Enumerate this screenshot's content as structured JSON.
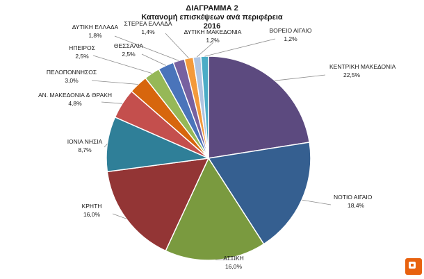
{
  "chart_data": {
    "type": "pie",
    "title_lines": [
      "ΔΙΑΓΡΑΜΜΑ 2",
      "Κατανομή επισκέψεων ανά περιφέρεια",
      "2016"
    ],
    "slices": [
      {
        "label": "ΚΕΝΤΡΙΚΗ ΜΑΚΕΔΟΝΙΑ",
        "value": 22.5,
        "value_label": "22,5%",
        "color": "#5c4a7f"
      },
      {
        "label": "ΝΟΤΙΟ ΑΙΓΑΙΟ",
        "value": 18.4,
        "value_label": "18,4%",
        "color": "#355f90"
      },
      {
        "label": "ΑΤΤΙΚΗ",
        "value": 16.0,
        "value_label": "16,0%",
        "color": "#7a9a3f"
      },
      {
        "label": "ΚΡΗΤΗ",
        "value": 16.0,
        "value_label": "16,0%",
        "color": "#933535"
      },
      {
        "label": "ΙΟΝΙΑ ΝΗΣΙΑ",
        "value": 8.7,
        "value_label": "8,7%",
        "color": "#2f7f98"
      },
      {
        "label": "ΑΝ. ΜΑΚΕΔΟΝΙΑ & ΘΡΑΚΗ",
        "value": 4.8,
        "value_label": "4,8%",
        "color": "#c44f4d"
      },
      {
        "label": "ΠΕΛΟΠΟΝΝΗΣΟΣ",
        "value": 3.0,
        "value_label": "3,0%",
        "color": "#d7660d"
      },
      {
        "label": "ΗΠΕΙΡΟΣ",
        "value": 2.5,
        "value_label": "2,5%",
        "color": "#96b857"
      },
      {
        "label": "ΘΕΣΣΑΛΙΑ",
        "value": 2.5,
        "value_label": "2,5%",
        "color": "#4a74ba"
      },
      {
        "label": "ΔΥΤΙΚΗ ΕΛΛΑΔΑ",
        "value": 1.8,
        "value_label": "1,8%",
        "color": "#7761a0"
      },
      {
        "label": "ΣΤΕΡΕΑ ΕΛΛΑΔΑ",
        "value": 1.4,
        "value_label": "1,4%",
        "color": "#f39a3b"
      },
      {
        "label": "ΔΥΤΙΚΗ ΜΑΚΕΔΟΝΙΑ",
        "value": 1.2,
        "value_label": "1,2%",
        "color": "#b0c5e2"
      },
      {
        "label": "ΒΟΡΕΙΟ ΑΙΓΑΙΟ",
        "value": 1.2,
        "value_label": "1,2%",
        "color": "#4bacc6"
      }
    ],
    "start": "top",
    "direction": "clockwise",
    "legend": "none",
    "data_labels": "outside with leader lines"
  }
}
